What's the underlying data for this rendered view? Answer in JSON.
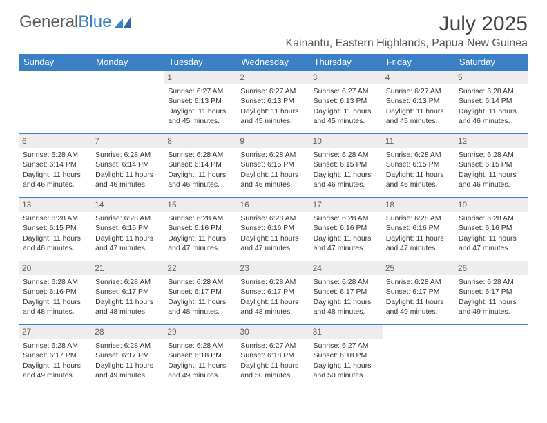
{
  "logo": {
    "text1": "General",
    "text2": "Blue"
  },
  "title": "July 2025",
  "location": "Kainantu, Eastern Highlands, Papua New Guinea",
  "colors": {
    "header_bg": "#3b7fc4",
    "header_text": "#ffffff",
    "daynum_bg": "#ededed",
    "daynum_text": "#606060",
    "cell_text": "#333333",
    "border": "#3b7fc4",
    "page_bg": "#ffffff",
    "logo_gray": "#5a5a5a",
    "logo_blue": "#3b7fc4"
  },
  "layout": {
    "columns": 7,
    "rows": 5,
    "cell_font_size_pt": 8,
    "header_font_size_pt": 10,
    "title_font_size_pt": 22
  },
  "weekdays": [
    "Sunday",
    "Monday",
    "Tuesday",
    "Wednesday",
    "Thursday",
    "Friday",
    "Saturday"
  ],
  "weeks": [
    [
      null,
      null,
      {
        "day": "1",
        "sunrise": "Sunrise: 6:27 AM",
        "sunset": "Sunset: 6:13 PM",
        "daylight": "Daylight: 11 hours and 45 minutes."
      },
      {
        "day": "2",
        "sunrise": "Sunrise: 6:27 AM",
        "sunset": "Sunset: 6:13 PM",
        "daylight": "Daylight: 11 hours and 45 minutes."
      },
      {
        "day": "3",
        "sunrise": "Sunrise: 6:27 AM",
        "sunset": "Sunset: 6:13 PM",
        "daylight": "Daylight: 11 hours and 45 minutes."
      },
      {
        "day": "4",
        "sunrise": "Sunrise: 6:27 AM",
        "sunset": "Sunset: 6:13 PM",
        "daylight": "Daylight: 11 hours and 45 minutes."
      },
      {
        "day": "5",
        "sunrise": "Sunrise: 6:28 AM",
        "sunset": "Sunset: 6:14 PM",
        "daylight": "Daylight: 11 hours and 46 minutes."
      }
    ],
    [
      {
        "day": "6",
        "sunrise": "Sunrise: 6:28 AM",
        "sunset": "Sunset: 6:14 PM",
        "daylight": "Daylight: 11 hours and 46 minutes."
      },
      {
        "day": "7",
        "sunrise": "Sunrise: 6:28 AM",
        "sunset": "Sunset: 6:14 PM",
        "daylight": "Daylight: 11 hours and 46 minutes."
      },
      {
        "day": "8",
        "sunrise": "Sunrise: 6:28 AM",
        "sunset": "Sunset: 6:14 PM",
        "daylight": "Daylight: 11 hours and 46 minutes."
      },
      {
        "day": "9",
        "sunrise": "Sunrise: 6:28 AM",
        "sunset": "Sunset: 6:15 PM",
        "daylight": "Daylight: 11 hours and 46 minutes."
      },
      {
        "day": "10",
        "sunrise": "Sunrise: 6:28 AM",
        "sunset": "Sunset: 6:15 PM",
        "daylight": "Daylight: 11 hours and 46 minutes."
      },
      {
        "day": "11",
        "sunrise": "Sunrise: 6:28 AM",
        "sunset": "Sunset: 6:15 PM",
        "daylight": "Daylight: 11 hours and 46 minutes."
      },
      {
        "day": "12",
        "sunrise": "Sunrise: 6:28 AM",
        "sunset": "Sunset: 6:15 PM",
        "daylight": "Daylight: 11 hours and 46 minutes."
      }
    ],
    [
      {
        "day": "13",
        "sunrise": "Sunrise: 6:28 AM",
        "sunset": "Sunset: 6:15 PM",
        "daylight": "Daylight: 11 hours and 46 minutes."
      },
      {
        "day": "14",
        "sunrise": "Sunrise: 6:28 AM",
        "sunset": "Sunset: 6:15 PM",
        "daylight": "Daylight: 11 hours and 47 minutes."
      },
      {
        "day": "15",
        "sunrise": "Sunrise: 6:28 AM",
        "sunset": "Sunset: 6:16 PM",
        "daylight": "Daylight: 11 hours and 47 minutes."
      },
      {
        "day": "16",
        "sunrise": "Sunrise: 6:28 AM",
        "sunset": "Sunset: 6:16 PM",
        "daylight": "Daylight: 11 hours and 47 minutes."
      },
      {
        "day": "17",
        "sunrise": "Sunrise: 6:28 AM",
        "sunset": "Sunset: 6:16 PM",
        "daylight": "Daylight: 11 hours and 47 minutes."
      },
      {
        "day": "18",
        "sunrise": "Sunrise: 6:28 AM",
        "sunset": "Sunset: 6:16 PM",
        "daylight": "Daylight: 11 hours and 47 minutes."
      },
      {
        "day": "19",
        "sunrise": "Sunrise: 6:28 AM",
        "sunset": "Sunset: 6:16 PM",
        "daylight": "Daylight: 11 hours and 47 minutes."
      }
    ],
    [
      {
        "day": "20",
        "sunrise": "Sunrise: 6:28 AM",
        "sunset": "Sunset: 6:16 PM",
        "daylight": "Daylight: 11 hours and 48 minutes."
      },
      {
        "day": "21",
        "sunrise": "Sunrise: 6:28 AM",
        "sunset": "Sunset: 6:17 PM",
        "daylight": "Daylight: 11 hours and 48 minutes."
      },
      {
        "day": "22",
        "sunrise": "Sunrise: 6:28 AM",
        "sunset": "Sunset: 6:17 PM",
        "daylight": "Daylight: 11 hours and 48 minutes."
      },
      {
        "day": "23",
        "sunrise": "Sunrise: 6:28 AM",
        "sunset": "Sunset: 6:17 PM",
        "daylight": "Daylight: 11 hours and 48 minutes."
      },
      {
        "day": "24",
        "sunrise": "Sunrise: 6:28 AM",
        "sunset": "Sunset: 6:17 PM",
        "daylight": "Daylight: 11 hours and 48 minutes."
      },
      {
        "day": "25",
        "sunrise": "Sunrise: 6:28 AM",
        "sunset": "Sunset: 6:17 PM",
        "daylight": "Daylight: 11 hours and 49 minutes."
      },
      {
        "day": "26",
        "sunrise": "Sunrise: 6:28 AM",
        "sunset": "Sunset: 6:17 PM",
        "daylight": "Daylight: 11 hours and 49 minutes."
      }
    ],
    [
      {
        "day": "27",
        "sunrise": "Sunrise: 6:28 AM",
        "sunset": "Sunset: 6:17 PM",
        "daylight": "Daylight: 11 hours and 49 minutes."
      },
      {
        "day": "28",
        "sunrise": "Sunrise: 6:28 AM",
        "sunset": "Sunset: 6:17 PM",
        "daylight": "Daylight: 11 hours and 49 minutes."
      },
      {
        "day": "29",
        "sunrise": "Sunrise: 6:28 AM",
        "sunset": "Sunset: 6:18 PM",
        "daylight": "Daylight: 11 hours and 49 minutes."
      },
      {
        "day": "30",
        "sunrise": "Sunrise: 6:27 AM",
        "sunset": "Sunset: 6:18 PM",
        "daylight": "Daylight: 11 hours and 50 minutes."
      },
      {
        "day": "31",
        "sunrise": "Sunrise: 6:27 AM",
        "sunset": "Sunset: 6:18 PM",
        "daylight": "Daylight: 11 hours and 50 minutes."
      },
      null,
      null
    ]
  ]
}
